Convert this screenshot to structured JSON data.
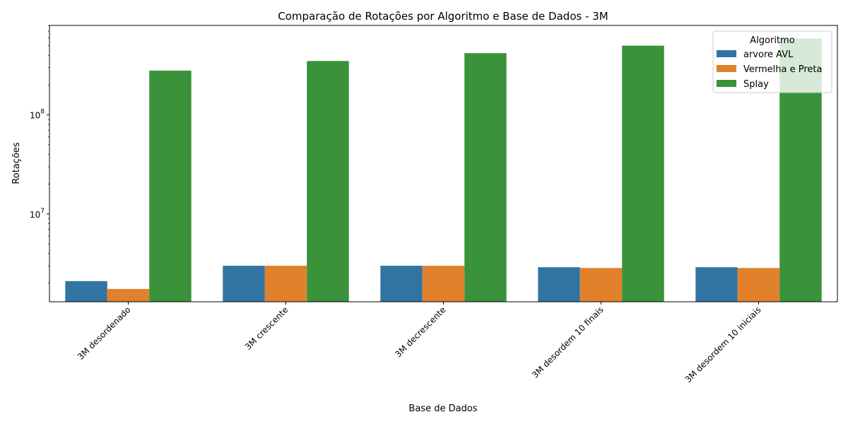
{
  "chart_data": {
    "type": "bar",
    "title": "Comparação de Rotações por Algoritmo e Base de Dados - 3M",
    "xlabel": "Base de Dados",
    "ylabel": "Rotações",
    "yscale": "log",
    "ylim": [
      1300000,
      800000000
    ],
    "yticks": [
      {
        "value": 10000000,
        "base": "10",
        "exp": "7"
      },
      {
        "value": 100000000,
        "base": "10",
        "exp": "8"
      }
    ],
    "categories": [
      "3M desordenado",
      "3M crescente",
      "3M decrescente",
      "3M desordem 10 finais",
      "3M desordem 10 iniciais"
    ],
    "legend_title": "Algoritmo",
    "legend_position": "top-right",
    "series": [
      {
        "name": "arvore AVL",
        "color": "#3274a1",
        "values": [
          2100000,
          3000000,
          3000000,
          2900000,
          2900000
        ]
      },
      {
        "name": "Vermelha e Preta",
        "color": "#e1812c",
        "values": [
          1750000,
          3000000,
          3000000,
          2850000,
          2850000
        ]
      },
      {
        "name": "Splay",
        "color": "#3a923a",
        "values": [
          280000000,
          350000000,
          420000000,
          500000000,
          590000000
        ]
      }
    ]
  }
}
